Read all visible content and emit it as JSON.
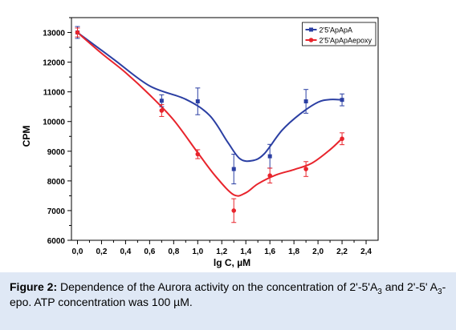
{
  "chart_data": {
    "type": "line",
    "xlabel": "lg C, µM",
    "ylabel": "CPM",
    "xlim": [
      -0.05,
      2.5
    ],
    "ylim": [
      6000,
      13500
    ],
    "xticks": [
      "0,0",
      "0,2",
      "0,4",
      "0,6",
      "0,8",
      "1,0",
      "1,2",
      "1,4",
      "1,6",
      "1,8",
      "2,0",
      "2,2",
      "2,4"
    ],
    "yticks": [
      "6000",
      "7000",
      "8000",
      "9000",
      "10000",
      "11000",
      "12000",
      "13000"
    ],
    "legend_position": "top-right",
    "grid": false,
    "series": [
      {
        "name": "2'5'ApApA",
        "color": "#2b3fa3",
        "marker": "square",
        "points": [
          {
            "x": 0.0,
            "y": 13000,
            "err": 200
          },
          {
            "x": 0.7,
            "y": 10700,
            "err": 200
          },
          {
            "x": 1.0,
            "y": 10680,
            "err": 450
          },
          {
            "x": 1.3,
            "y": 8400,
            "err": 500
          },
          {
            "x": 1.6,
            "y": 8830,
            "err": 400
          },
          {
            "x": 1.9,
            "y": 10680,
            "err": 400
          },
          {
            "x": 2.2,
            "y": 10730,
            "err": 200
          }
        ],
        "fit": [
          [
            0.0,
            13000
          ],
          [
            0.3,
            12100
          ],
          [
            0.6,
            11200
          ],
          [
            0.9,
            10750
          ],
          [
            1.1,
            10200
          ],
          [
            1.25,
            9300
          ],
          [
            1.35,
            8750
          ],
          [
            1.45,
            8680
          ],
          [
            1.55,
            8900
          ],
          [
            1.7,
            9700
          ],
          [
            1.85,
            10250
          ],
          [
            2.0,
            10650
          ],
          [
            2.1,
            10740
          ],
          [
            2.2,
            10730
          ]
        ]
      },
      {
        "name": "2'5'ApApAepoxy",
        "color": "#e8242c",
        "marker": "circle",
        "points": [
          {
            "x": 0.0,
            "y": 13000,
            "err": 150
          },
          {
            "x": 0.7,
            "y": 10370,
            "err": 200
          },
          {
            "x": 1.0,
            "y": 8900,
            "err": 150
          },
          {
            "x": 1.3,
            "y": 7000,
            "err": 400
          },
          {
            "x": 1.6,
            "y": 8180,
            "err": 250
          },
          {
            "x": 1.9,
            "y": 8400,
            "err": 250
          },
          {
            "x": 2.2,
            "y": 9420,
            "err": 200
          }
        ],
        "fit": [
          [
            0.0,
            13000
          ],
          [
            0.2,
            12300
          ],
          [
            0.4,
            11650
          ],
          [
            0.6,
            10900
          ],
          [
            0.8,
            10050
          ],
          [
            1.0,
            8950
          ],
          [
            1.15,
            8150
          ],
          [
            1.3,
            7530
          ],
          [
            1.4,
            7600
          ],
          [
            1.5,
            7900
          ],
          [
            1.65,
            8200
          ],
          [
            1.8,
            8380
          ],
          [
            1.95,
            8600
          ],
          [
            2.1,
            9050
          ],
          [
            2.2,
            9430
          ]
        ]
      }
    ]
  },
  "caption": {
    "label": "Figure 2:",
    "text_1": " Dependence of the Aurora activity on the concentration of 2'-5'A",
    "sub_1": "3",
    "text_2": " and 2'-5' A",
    "sub_2": "3",
    "text_3": "-epo. ATP concentration was 100 µM."
  }
}
